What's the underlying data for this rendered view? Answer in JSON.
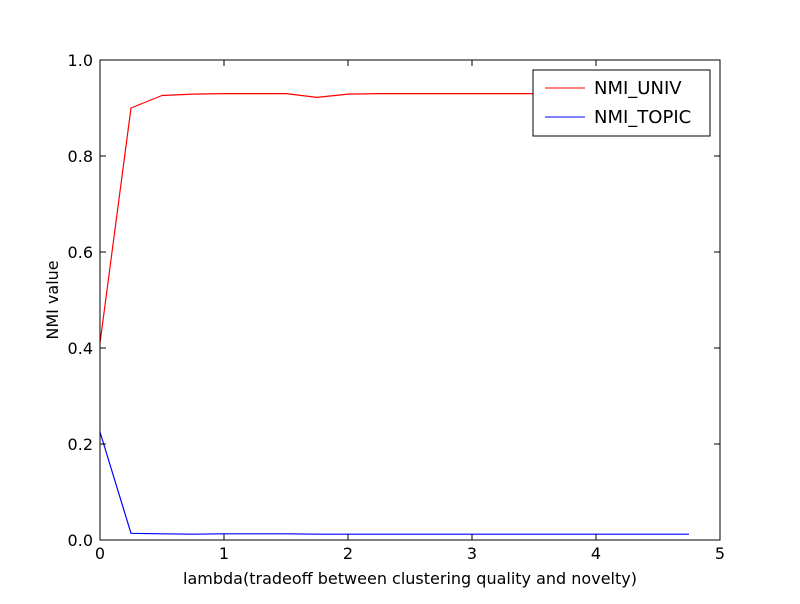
{
  "chart_data": {
    "type": "line",
    "xlabel": "lambda(tradeoff between clustering quality and novelty)",
    "ylabel": "NMI value",
    "xlim": [
      0,
      5
    ],
    "ylim": [
      0,
      1
    ],
    "x_ticks": [
      0,
      1,
      2,
      3,
      4,
      5
    ],
    "x_tick_labels": [
      "0",
      "1",
      "2",
      "3",
      "4",
      "5"
    ],
    "y_ticks": [
      0,
      0.2,
      0.4,
      0.6,
      0.8,
      1.0
    ],
    "y_tick_labels": [
      "0.0",
      "0.2",
      "0.4",
      "0.6",
      "0.8",
      "1.0"
    ],
    "grid": false,
    "legend_position": "top-right",
    "x": [
      0,
      0.25,
      0.5,
      0.75,
      1.0,
      1.25,
      1.5,
      1.75,
      2.0,
      2.25,
      2.5,
      2.75,
      3.0,
      3.25,
      3.5,
      3.75,
      4.0,
      4.25,
      4.5,
      4.75
    ],
    "series": [
      {
        "name": "NMI_UNIV",
        "color": "#ff0000",
        "values": [
          0.41,
          0.9,
          0.926,
          0.929,
          0.93,
          0.93,
          0.93,
          0.922,
          0.929,
          0.93,
          0.93,
          0.93,
          0.93,
          0.93,
          0.93,
          0.93,
          0.93,
          0.93,
          0.93,
          0.93
        ]
      },
      {
        "name": "NMI_TOPIC",
        "color": "#0000ff",
        "values": [
          0.225,
          0.014,
          0.013,
          0.012,
          0.013,
          0.013,
          0.013,
          0.012,
          0.012,
          0.012,
          0.012,
          0.012,
          0.012,
          0.012,
          0.012,
          0.012,
          0.012,
          0.012,
          0.012,
          0.012
        ]
      }
    ]
  }
}
